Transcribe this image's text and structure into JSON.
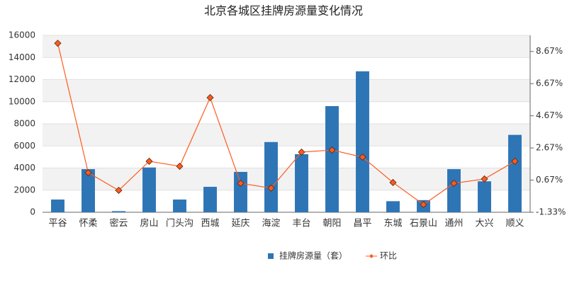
{
  "chart_data": {
    "type": "bar",
    "title": "北京各城区挂牌房源量变化情况",
    "categories": [
      "平谷",
      "怀柔",
      "密云",
      "房山",
      "门头沟",
      "西城",
      "延庆",
      "海淀",
      "丰台",
      "朝阳",
      "昌平",
      "东城",
      "石景山",
      "通州",
      "大兴",
      "顺义"
    ],
    "series": [
      {
        "name": "挂牌房源量（套）",
        "type": "bar",
        "color": "#2e75b6",
        "values": [
          1150,
          3900,
          100,
          4050,
          1150,
          2300,
          3650,
          6350,
          5250,
          9600,
          12750,
          1000,
          1100,
          3900,
          2800,
          7000
        ]
      },
      {
        "name": "环比",
        "type": "line",
        "axis": "y2",
        "color": "#ff5a1f",
        "values": [
          9.18,
          1.13,
          0.03,
          1.84,
          1.53,
          5.8,
          0.47,
          0.17,
          2.41,
          2.54,
          2.1,
          0.52,
          -0.85,
          0.47,
          0.74,
          1.84
        ]
      }
    ],
    "ylim": [
      0,
      16000
    ],
    "yticks": [
      0,
      2000,
      4000,
      6000,
      8000,
      10000,
      12000,
      14000,
      16000
    ],
    "y2lim": [
      -1.33,
      9.67
    ],
    "y2ticks": [
      {
        "value": -1.33,
        "label": "-1.33%"
      },
      {
        "value": 0.67,
        "label": "0.67%"
      },
      {
        "value": 2.67,
        "label": "2.67%"
      },
      {
        "value": 4.67,
        "label": "4.67%"
      },
      {
        "value": 6.67,
        "label": "6.67%"
      },
      {
        "value": 8.67,
        "label": "8.67%"
      }
    ],
    "grid": true,
    "legend": "bottom"
  }
}
